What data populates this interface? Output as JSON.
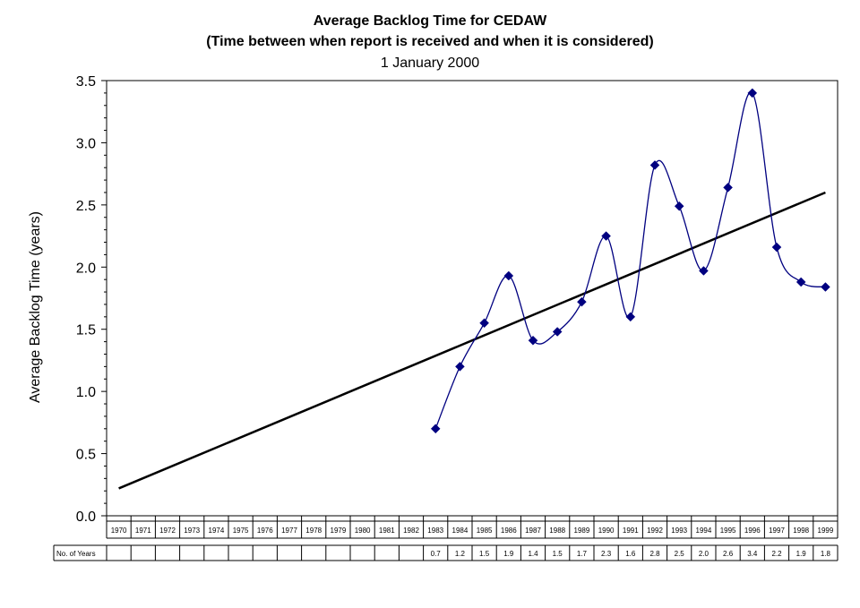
{
  "title": "Average Backlog Time for CEDAW",
  "subtitle": "(Time between when report is received and when it is considered)",
  "date_label": "1 January 2000",
  "chart_data": {
    "type": "line",
    "title": "Average Backlog Time for CEDAW",
    "subtitle": "(Time between when report is received and when it is considered)",
    "ylabel": "Average Backlog Time (years)",
    "xlabel": "",
    "ylim": [
      0,
      3.5
    ],
    "yticks": [
      "0.0",
      "0.5",
      "1.0",
      "1.5",
      "2.0",
      "2.5",
      "3.0",
      "3.5"
    ],
    "categories": [
      "1970",
      "1971",
      "1972",
      "1973",
      "1974",
      "1975",
      "1976",
      "1977",
      "1978",
      "1979",
      "1980",
      "1981",
      "1982",
      "1983",
      "1984",
      "1985",
      "1986",
      "1987",
      "1988",
      "1989",
      "1990",
      "1991",
      "1992",
      "1993",
      "1994",
      "1995",
      "1996",
      "1997",
      "1998",
      "1999"
    ],
    "series": [
      {
        "values": [
          null,
          null,
          null,
          null,
          null,
          null,
          null,
          null,
          null,
          null,
          null,
          null,
          null,
          0.7,
          1.2,
          1.55,
          1.93,
          1.41,
          1.48,
          1.72,
          2.25,
          1.6,
          2.82,
          2.49,
          1.97,
          2.64,
          3.4,
          2.16,
          1.88,
          1.84
        ],
        "color": "#000080",
        "marker": "diamond",
        "smooth": true
      },
      {
        "trend": true,
        "from": {
          "x": "1970",
          "y": 0.22
        },
        "to": {
          "x": "1999",
          "y": 2.6
        },
        "color": "#000000"
      }
    ],
    "table": {
      "row_label": "No. of Years",
      "values": [
        "",
        "",
        "",
        "",
        "",
        "",
        "",
        "",
        "",
        "",
        "",
        "",
        "",
        "0.7",
        "1.2",
        "1.5",
        "1.9",
        "1.4",
        "1.5",
        "1.7",
        "2.3",
        "1.6",
        "2.8",
        "2.5",
        "2.0",
        "2.6",
        "3.4",
        "2.2",
        "1.9",
        "1.8"
      ]
    },
    "grid": false,
    "legend": "none"
  }
}
